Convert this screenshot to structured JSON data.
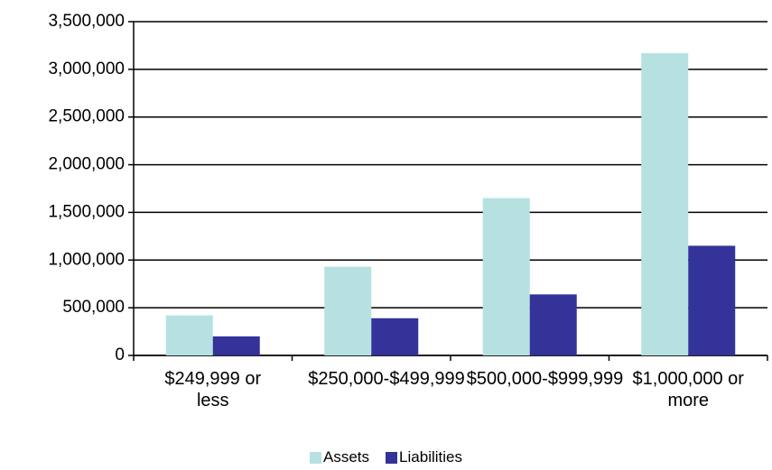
{
  "chart_data": {
    "type": "bar",
    "categories": [
      "$249,999 or less",
      "$250,000-$499,999",
      "$500,000-$999,999",
      "$1,000,000 or more"
    ],
    "series": [
      {
        "name": "Assets",
        "color": "#b7e1e1",
        "values": [
          420000,
          930000,
          1650000,
          3170000
        ]
      },
      {
        "name": "Liabilities",
        "color": "#333399",
        "values": [
          200000,
          390000,
          640000,
          1150000
        ]
      }
    ],
    "ylim": [
      0,
      3500000
    ],
    "yticks": [
      0,
      {
        "value": 500000,
        "label": "500,000"
      },
      {
        "value": 1000000,
        "label": "1,000,000"
      },
      {
        "value": 1500000,
        "label": "1,500,000"
      },
      {
        "value": 2000000,
        "label": "2,000,000"
      },
      {
        "value": 2500000,
        "label": "2,500,000"
      },
      {
        "value": 3000000,
        "label": "3,000,000"
      },
      {
        "value": 3500000,
        "label": "3,500,000"
      }
    ],
    "grid": true,
    "legend": "bottom"
  }
}
